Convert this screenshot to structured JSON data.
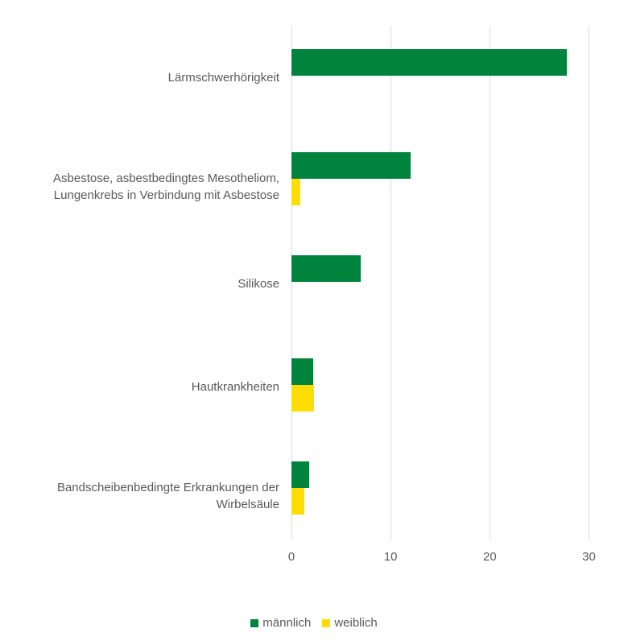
{
  "chart_data": {
    "type": "bar",
    "orientation": "horizontal",
    "title": "",
    "xlabel": "",
    "ylabel": "",
    "categories": [
      "Lärmschwerhörigkeit",
      "Asbestose, asbestbedingtes Mesotheliom, Lungenkrebs in Verbindung mit Asbestose",
      "Silikose",
      "Hautkrankheiten",
      "Bandscheibenbedingte Erkrankungen der Wirbelsäule"
    ],
    "category_lines": [
      [
        "Lärmschwerhörigkeit"
      ],
      [
        "Asbestose, asbestbedingtes Mesotheliom,",
        "Lungenkrebs in Verbindung mit Asbestose"
      ],
      [
        "Silikose"
      ],
      [
        "Hautkrankheiten"
      ],
      [
        "Bandscheibenbedingte Erkrankungen der",
        "Wirbelsäule"
      ]
    ],
    "series": [
      {
        "name": "männlich",
        "color": "#00843D",
        "values": [
          27.8,
          12.0,
          7.0,
          2.2,
          1.8
        ]
      },
      {
        "name": "weiblich",
        "color": "#FFDD00",
        "values": [
          0,
          0.9,
          0,
          2.25,
          1.3
        ]
      }
    ],
    "xlim": [
      0,
      30
    ],
    "xticks": [
      "0",
      "10",
      "20",
      "30"
    ],
    "grid": true,
    "legend_position": "bottom"
  },
  "legend": {
    "items": [
      {
        "label": "männlich",
        "color": "#00843D"
      },
      {
        "label": "weiblich",
        "color": "#FFDD00"
      }
    ]
  }
}
